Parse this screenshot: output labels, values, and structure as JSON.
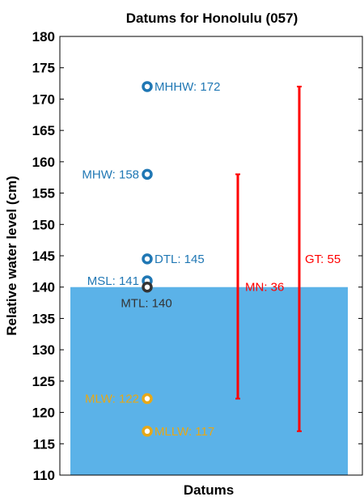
{
  "chart_data": {
    "type": "scatter",
    "title": "Datums for Honolulu (057)",
    "xlabel": "Datums",
    "ylabel": "Relative water level (cm)",
    "ylim": [
      110,
      180
    ],
    "yticks": [
      110,
      115,
      120,
      125,
      130,
      135,
      140,
      145,
      150,
      155,
      160,
      165,
      170,
      175,
      180
    ],
    "grid": false,
    "water_fill": {
      "top": 140,
      "color": "#5bb2e8"
    },
    "points": [
      {
        "label": "MHHW: 172",
        "y": 172,
        "color": "#1f77b4",
        "label_side": "right"
      },
      {
        "label": "MHW: 158",
        "y": 158,
        "color": "#1f77b4",
        "label_side": "left"
      },
      {
        "label": "DTL: 145",
        "y": 144.5,
        "color": "#1f77b4",
        "label_side": "right"
      },
      {
        "label": "MSL: 141",
        "y": 141,
        "color": "#1f77b4",
        "label_side": "left"
      },
      {
        "label": "MTL: 140",
        "y": 140,
        "color": "#333333",
        "label_side": "below"
      },
      {
        "label": "MLW: 122",
        "y": 122.2,
        "color": "#e6a817",
        "label_side": "left"
      },
      {
        "label": "MLLW: 117",
        "y": 117,
        "color": "#e6a817",
        "label_side": "right"
      }
    ],
    "ranges": [
      {
        "label": "MN: 36",
        "low": 122.2,
        "high": 158,
        "color": "#ff0000"
      },
      {
        "label": "GT: 55",
        "low": 117,
        "high": 172,
        "color": "#ff0000"
      }
    ]
  }
}
